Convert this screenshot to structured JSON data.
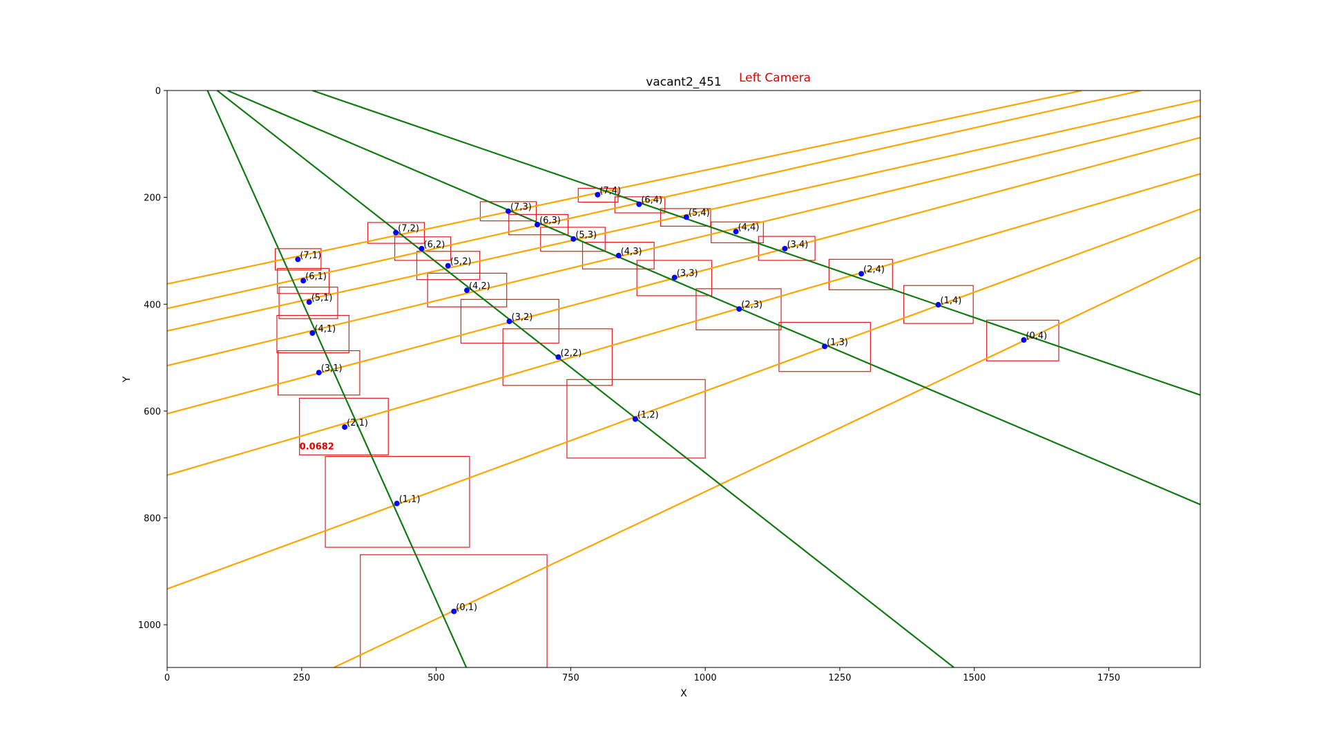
{
  "chart_data": {
    "type": "scatter",
    "title": "vacant2_451",
    "subtitle": "Left Camera",
    "xlabel": "X",
    "ylabel": "Y",
    "xlim": [
      0,
      1920
    ],
    "ylim": [
      1080,
      0
    ],
    "y_inverted": true,
    "x_ticks": [
      0,
      250,
      500,
      750,
      1000,
      1250,
      1500,
      1750
    ],
    "y_ticks": [
      0,
      200,
      400,
      600,
      800,
      1000
    ],
    "grid": false,
    "colors": {
      "points": "#0000ff",
      "boxes": "#e31a1c",
      "vertical_lines": "#0f7a0f",
      "horizontal_lines": "#ffa500",
      "subtitle": "#e00000",
      "score": "#e00000"
    },
    "score_label": {
      "text": "0.0682",
      "x": 246,
      "y": 672
    },
    "points": [
      {
        "label": "(0,1)",
        "x": 533,
        "y": 975
      },
      {
        "label": "(1,1)",
        "x": 427,
        "y": 773
      },
      {
        "label": "(2,1)",
        "x": 330,
        "y": 630
      },
      {
        "label": "(3,1)",
        "x": 282,
        "y": 528
      },
      {
        "label": "(4,1)",
        "x": 270,
        "y": 454
      },
      {
        "label": "(5,1)",
        "x": 264,
        "y": 396
      },
      {
        "label": "(6,1)",
        "x": 253,
        "y": 356
      },
      {
        "label": "(7,1)",
        "x": 243,
        "y": 316
      },
      {
        "label": "(1,2)",
        "x": 870,
        "y": 615
      },
      {
        "label": "(2,2)",
        "x": 727,
        "y": 499
      },
      {
        "label": "(3,2)",
        "x": 636,
        "y": 432
      },
      {
        "label": "(4,2)",
        "x": 557,
        "y": 374
      },
      {
        "label": "(5,2)",
        "x": 522,
        "y": 328
      },
      {
        "label": "(6,2)",
        "x": 473,
        "y": 296
      },
      {
        "label": "(7,2)",
        "x": 425,
        "y": 266
      },
      {
        "label": "(1,3)",
        "x": 1222,
        "y": 479
      },
      {
        "label": "(2,3)",
        "x": 1063,
        "y": 409
      },
      {
        "label": "(3,3)",
        "x": 943,
        "y": 350
      },
      {
        "label": "(4,3)",
        "x": 839,
        "y": 309
      },
      {
        "label": "(5,3)",
        "x": 755,
        "y": 278
      },
      {
        "label": "(6,3)",
        "x": 688,
        "y": 251
      },
      {
        "label": "(7,3)",
        "x": 634,
        "y": 226
      },
      {
        "label": "(0,4)",
        "x": 1592,
        "y": 467
      },
      {
        "label": "(1,4)",
        "x": 1433,
        "y": 401
      },
      {
        "label": "(2,4)",
        "x": 1290,
        "y": 343
      },
      {
        "label": "(3,4)",
        "x": 1148,
        "y": 296
      },
      {
        "label": "(4,4)",
        "x": 1057,
        "y": 264
      },
      {
        "label": "(5,4)",
        "x": 965,
        "y": 237
      },
      {
        "label": "(6,4)",
        "x": 877,
        "y": 213
      },
      {
        "label": "(7,4)",
        "x": 800,
        "y": 195
      }
    ],
    "boxes": [
      {
        "x0": 359,
        "y0": 869,
        "x1": 706,
        "y1": 1080
      },
      {
        "x0": 294,
        "y0": 685,
        "x1": 562,
        "y1": 855
      },
      {
        "x0": 246,
        "y0": 576,
        "x1": 411,
        "y1": 682
      },
      {
        "x0": 206,
        "y0": 487,
        "x1": 358,
        "y1": 570
      },
      {
        "x0": 204,
        "y0": 421,
        "x1": 338,
        "y1": 491
      },
      {
        "x0": 208,
        "y0": 368,
        "x1": 317,
        "y1": 427
      },
      {
        "x0": 205,
        "y0": 333,
        "x1": 301,
        "y1": 380
      },
      {
        "x0": 201,
        "y0": 296,
        "x1": 286,
        "y1": 336
      },
      {
        "x0": 743,
        "y0": 541,
        "x1": 1000,
        "y1": 688
      },
      {
        "x0": 624,
        "y0": 446,
        "x1": 827,
        "y1": 552
      },
      {
        "x0": 546,
        "y0": 391,
        "x1": 728,
        "y1": 473
      },
      {
        "x0": 484,
        "y0": 342,
        "x1": 631,
        "y1": 405
      },
      {
        "x0": 464,
        "y0": 301,
        "x1": 581,
        "y1": 354
      },
      {
        "x0": 423,
        "y0": 274,
        "x1": 527,
        "y1": 318
      },
      {
        "x0": 373,
        "y0": 247,
        "x1": 478,
        "y1": 286
      },
      {
        "x0": 1137,
        "y0": 434,
        "x1": 1307,
        "y1": 526
      },
      {
        "x0": 983,
        "y0": 371,
        "x1": 1141,
        "y1": 448
      },
      {
        "x0": 873,
        "y0": 318,
        "x1": 1012,
        "y1": 384
      },
      {
        "x0": 772,
        "y0": 284,
        "x1": 905,
        "y1": 334
      },
      {
        "x0": 694,
        "y0": 256,
        "x1": 814,
        "y1": 301
      },
      {
        "x0": 635,
        "y0": 232,
        "x1": 745,
        "y1": 270
      },
      {
        "x0": 582,
        "y0": 208,
        "x1": 686,
        "y1": 244
      },
      {
        "x0": 1523,
        "y0": 430,
        "x1": 1657,
        "y1": 506
      },
      {
        "x0": 1369,
        "y0": 365,
        "x1": 1498,
        "y1": 436
      },
      {
        "x0": 1230,
        "y0": 316,
        "x1": 1348,
        "y1": 373
      },
      {
        "x0": 1099,
        "y0": 273,
        "x1": 1204,
        "y1": 318
      },
      {
        "x0": 1011,
        "y0": 246,
        "x1": 1108,
        "y1": 285
      },
      {
        "x0": 917,
        "y0": 221,
        "x1": 1010,
        "y1": 254
      },
      {
        "x0": 832,
        "y0": 199,
        "x1": 925,
        "y1": 229
      },
      {
        "x0": 764,
        "y0": 183,
        "x1": 838,
        "y1": 209
      }
    ],
    "vertical_lines": [
      {
        "x1": 75,
        "y1": 0,
        "x2": 556,
        "y2": 1080
      },
      {
        "x1": 93,
        "y1": 0,
        "x2": 1462,
        "y2": 1080
      },
      {
        "x1": 112,
        "y1": 0,
        "x2": 1920,
        "y2": 775
      },
      {
        "x1": 270,
        "y1": 0,
        "x2": 1920,
        "y2": 570
      }
    ],
    "horizontal_lines": [
      {
        "x1": 0,
        "y1": 362,
        "x2": 1700,
        "y2": 0
      },
      {
        "x1": 0,
        "y1": 408,
        "x2": 1810,
        "y2": 0
      },
      {
        "x1": 0,
        "y1": 450,
        "x2": 1920,
        "y2": 18
      },
      {
        "x1": 0,
        "y1": 515,
        "x2": 1920,
        "y2": 48
      },
      {
        "x1": 0,
        "y1": 605,
        "x2": 1920,
        "y2": 88
      },
      {
        "x1": 0,
        "y1": 720,
        "x2": 1920,
        "y2": 156
      },
      {
        "x1": 0,
        "y1": 933,
        "x2": 1920,
        "y2": 222
      },
      {
        "x1": 310,
        "y1": 1080,
        "x2": 1920,
        "y2": 312
      }
    ]
  }
}
